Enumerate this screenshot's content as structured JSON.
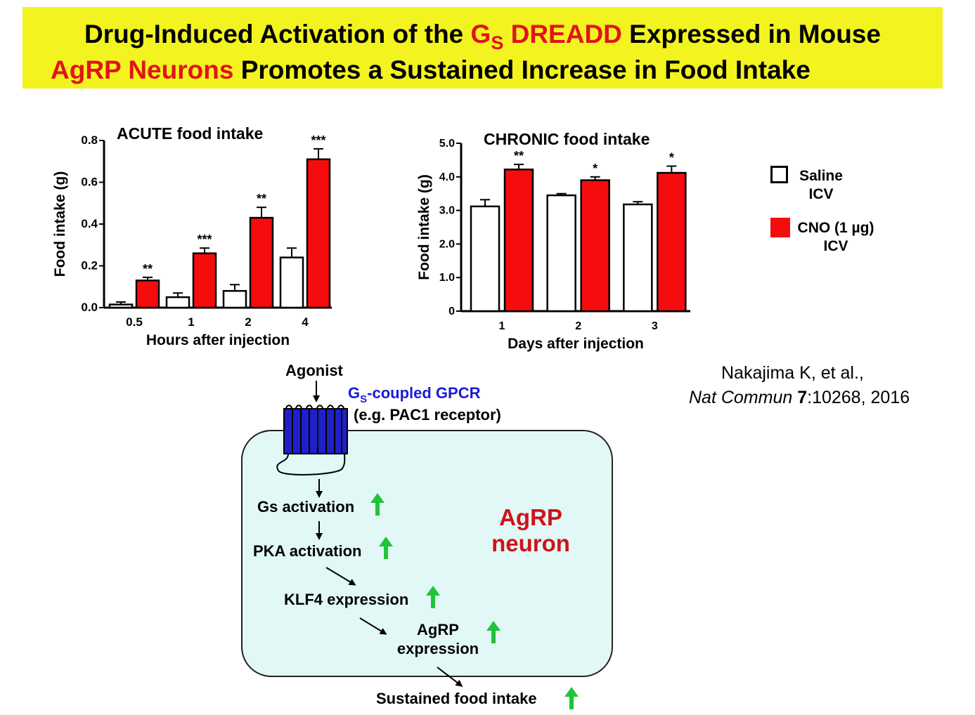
{
  "title": {
    "line1_part1": "Drug-Induced Activation of the ",
    "line1_red_g": "G",
    "line1_red_sub": "S",
    "line1_red_dreadd": " DREADD",
    "line1_part2": " Expressed in Mouse",
    "line2_red": "AgRP Neurons",
    "line2_part2": " Promotes a Sustained Increase in Food Intake"
  },
  "colors": {
    "banner": "#f3f31f",
    "cno": "#f50d0d",
    "saline": "#ffffff",
    "up_arrow": "#1fc43a",
    "gpcr": "#1a1ad6",
    "neuron_fill": "#e2f8f6",
    "neuron_label": "#d01218"
  },
  "legend": {
    "saline_label": "Saline",
    "saline_sub": "ICV",
    "cno_label": "CNO (1 µg)",
    "cno_sub": "ICV"
  },
  "chart_data": [
    {
      "type": "bar",
      "title": "ACUTE  food intake",
      "xlabel": "Hours after injection",
      "ylabel": "Food intake (g)",
      "ylim": [
        0,
        0.8
      ],
      "yticks": [
        "0.0",
        "0.2",
        "0.4",
        "0.6",
        "0.8"
      ],
      "categories": [
        "0.5",
        "1",
        "2",
        "4"
      ],
      "series": [
        {
          "name": "Saline ICV",
          "values": [
            0.015,
            0.05,
            0.08,
            0.24
          ],
          "errors": [
            0.012,
            0.02,
            0.03,
            0.045
          ]
        },
        {
          "name": "CNO (1 µg) ICV",
          "values": [
            0.13,
            0.26,
            0.43,
            0.71
          ],
          "errors": [
            0.015,
            0.025,
            0.05,
            0.05
          ]
        }
      ],
      "significance": [
        "**",
        "***",
        "**",
        "***"
      ]
    },
    {
      "type": "bar",
      "title": "CHRONIC  food intake",
      "xlabel": "Days after injection",
      "ylabel": "Food intake (g)",
      "ylim": [
        0,
        5.0
      ],
      "yticks": [
        "0",
        "1.0",
        "2.0",
        "3.0",
        "4.0",
        "5.0"
      ],
      "categories": [
        "1",
        "2",
        "3"
      ],
      "series": [
        {
          "name": "Saline ICV",
          "values": [
            3.12,
            3.45,
            3.18
          ],
          "errors": [
            0.2,
            0.05,
            0.08
          ]
        },
        {
          "name": "CNO (1 µg) ICV",
          "values": [
            4.22,
            3.9,
            4.12
          ],
          "errors": [
            0.15,
            0.1,
            0.2
          ]
        }
      ],
      "significance": [
        "**",
        "*",
        "*"
      ]
    }
  ],
  "citation": {
    "authors": "Nakajima K, et al.,",
    "journal": "Nat Commun",
    "volume": "7",
    "rest": ":10268, 2016"
  },
  "diagram": {
    "agonist": "Agonist",
    "gpcr_g": "G",
    "gpcr_sub": "S",
    "gpcr_rest": "-coupled GPCR",
    "gpcr_example": "(e.g. PAC1 receptor)",
    "gs_activation": "Gs activation",
    "pka_activation": "PKA activation",
    "klf4_expression": "KLF4 expression",
    "agrp_expression_line1": "AgRP",
    "agrp_expression_line2": "expression",
    "sustained_food_intake": "Sustained  food intake",
    "neuron_label_line1": "AgRP",
    "neuron_label_line2": "neuron"
  }
}
